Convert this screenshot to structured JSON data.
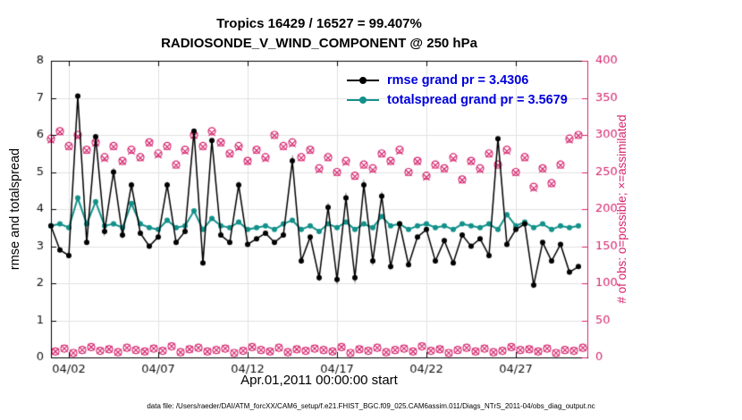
{
  "figure": {
    "title1": "Tropics 16429 / 16527 = 99.407%",
    "title2": "RADIOSONDE_V_WIND_COMPONENT @ 250 hPa",
    "caption": "data file: /Users/raeder/DAI/ATM_forcXX/CAM6_setup/f.e21.FHIST_BGC.f09_025.CAM6assim.011/Diags_NTrS_2011-04/obs_diag_output.nc"
  },
  "colors": {
    "rmse": "#000000",
    "totalspread": "#12918a",
    "obs": "#d6246e",
    "legend_text": "#0000dd",
    "grid": "#e2e2e2",
    "axis": "#000000"
  },
  "legend": {
    "entries": [
      {
        "label": "rmse grand pr = 3.4306",
        "swatch": "#000000"
      },
      {
        "label": "totalspread grand pr = 3.5679",
        "swatch": "#12918a"
      }
    ]
  },
  "chart_data": {
    "type": "line",
    "title": "Tropics 16429 / 16527 = 99.407%",
    "subtitle": "RADIOSONDE_V_WIND_COMPONENT @ 250 hPa",
    "x_axis": {
      "label": "Apr.01,2011 00:00:00 start",
      "range": [
        1,
        31
      ],
      "ticks": [
        {
          "day": 2,
          "label": "04/02"
        },
        {
          "day": 7,
          "label": "04/07"
        },
        {
          "day": 12,
          "label": "04/12"
        },
        {
          "day": 17,
          "label": "04/17"
        },
        {
          "day": 22,
          "label": "04/22"
        },
        {
          "day": 27,
          "label": "04/27"
        }
      ]
    },
    "y_left": {
      "label": "rmse and totalspread",
      "range": [
        0,
        8
      ],
      "ticks": [
        0,
        1,
        2,
        3,
        4,
        5,
        6,
        7,
        8
      ]
    },
    "y_right": {
      "label": "# of obs: o=possible; ×=assimilated",
      "range": [
        0,
        400
      ],
      "ticks": [
        0,
        50,
        100,
        150,
        200,
        250,
        300,
        350,
        400
      ]
    },
    "grid": true,
    "legend_position": "top-center-inside",
    "totals": {
      "possible": 16527,
      "assimilated": 16429,
      "percent_assimilated": 99.407
    },
    "series": [
      {
        "name": "rmse",
        "axis": "left",
        "style": "line-dot",
        "color": "#000000",
        "grand_pr": 3.4306,
        "t0": 1.0,
        "dt": 0.5,
        "values": [
          3.55,
          2.9,
          2.75,
          7.05,
          3.1,
          5.95,
          3.4,
          5.0,
          3.3,
          4.65,
          3.35,
          3.0,
          3.25,
          4.65,
          3.1,
          3.4,
          6.1,
          2.55,
          5.85,
          3.3,
          3.1,
          4.65,
          3.05,
          3.2,
          3.35,
          3.1,
          3.3,
          5.3,
          2.6,
          3.25,
          2.15,
          4.05,
          2.1,
          4.3,
          2.15,
          4.65,
          2.6,
          4.35,
          2.45,
          3.6,
          2.5,
          3.25,
          3.45,
          2.6,
          3.15,
          2.55,
          3.3,
          3.0,
          3.2,
          2.75,
          5.9,
          3.05,
          3.45,
          3.6,
          1.95,
          3.1,
          2.6,
          3.05,
          2.3,
          2.45
        ]
      },
      {
        "name": "totalspread",
        "axis": "left",
        "style": "line-dot",
        "color": "#12918a",
        "grand_pr": 3.5679,
        "t0": 1.0,
        "dt": 0.5,
        "values": [
          3.55,
          3.6,
          3.5,
          4.3,
          3.6,
          4.2,
          3.55,
          3.6,
          3.5,
          4.15,
          3.6,
          3.5,
          3.45,
          3.7,
          3.5,
          3.55,
          3.95,
          3.45,
          3.75,
          3.55,
          3.5,
          3.65,
          3.45,
          3.5,
          3.55,
          3.45,
          3.6,
          3.7,
          3.45,
          3.55,
          3.4,
          3.6,
          3.5,
          3.65,
          3.45,
          3.6,
          3.5,
          3.8,
          3.55,
          3.6,
          3.45,
          3.55,
          3.6,
          3.5,
          3.55,
          3.45,
          3.6,
          3.55,
          3.5,
          3.6,
          3.45,
          3.85,
          3.55,
          3.65,
          3.5,
          3.6,
          3.45,
          3.55,
          3.5,
          3.55
        ]
      },
      {
        "name": "possible",
        "axis": "right",
        "style": "marker",
        "marker": "o",
        "color": "#d6246e",
        "t0": 1.0,
        "dt": 0.5,
        "values": [
          295,
          305,
          285,
          300,
          280,
          290,
          270,
          285,
          265,
          280,
          270,
          290,
          275,
          285,
          260,
          280,
          300,
          285,
          305,
          290,
          275,
          285,
          265,
          280,
          270,
          300,
          285,
          290,
          270,
          280,
          255,
          270,
          250,
          265,
          245,
          260,
          255,
          275,
          265,
          280,
          250,
          265,
          245,
          260,
          255,
          270,
          240,
          265,
          255,
          275,
          260,
          280,
          250,
          270,
          230,
          255,
          235,
          260,
          295,
          300
        ]
      },
      {
        "name": "assimilated",
        "axis": "right",
        "style": "marker",
        "marker": "x",
        "color": "#d6246e",
        "t0": 1.0,
        "dt": 0.5,
        "values": [
          293,
          304,
          284,
          298,
          279,
          289,
          268,
          284,
          264,
          278,
          269,
          289,
          273,
          284,
          259,
          278,
          299,
          284,
          303,
          289,
          274,
          283,
          264,
          279,
          268,
          299,
          284,
          288,
          269,
          279,
          253,
          269,
          249,
          263,
          244,
          259,
          253,
          274,
          264,
          278,
          249,
          264,
          243,
          259,
          254,
          268,
          239,
          264,
          253,
          274,
          259,
          278,
          249,
          269,
          228,
          254,
          234,
          259,
          293,
          299
        ]
      },
      {
        "name": "possible_offsynoptic",
        "axis": "right",
        "style": "marker",
        "marker": "o",
        "color": "#d6246e",
        "t0": 1.25,
        "dt": 0.5,
        "values": [
          8,
          12,
          6,
          10,
          14,
          9,
          11,
          7,
          13,
          10,
          8,
          12,
          9,
          15,
          7,
          11,
          13,
          8,
          10,
          12,
          6,
          9,
          14,
          10,
          8,
          13,
          7,
          11,
          9,
          12,
          10,
          8,
          14,
          6,
          11,
          9,
          13,
          7,
          10,
          12,
          8,
          15,
          9,
          11,
          6,
          10,
          13,
          8,
          12,
          7,
          9,
          14,
          10,
          11,
          8,
          12,
          6,
          10,
          9,
          13
        ]
      },
      {
        "name": "assimilated_offsynoptic",
        "axis": "right",
        "style": "marker",
        "marker": "x",
        "color": "#d6246e",
        "t0": 1.25,
        "dt": 0.5,
        "values": [
          8,
          12,
          6,
          10,
          14,
          9,
          11,
          7,
          13,
          10,
          8,
          12,
          9,
          15,
          7,
          11,
          13,
          8,
          10,
          12,
          6,
          9,
          14,
          10,
          8,
          13,
          7,
          11,
          9,
          12,
          10,
          8,
          14,
          6,
          11,
          9,
          13,
          7,
          10,
          12,
          8,
          15,
          9,
          11,
          6,
          10,
          13,
          8,
          12,
          7,
          9,
          14,
          10,
          11,
          8,
          12,
          6,
          10,
          9,
          13
        ]
      }
    ]
  }
}
